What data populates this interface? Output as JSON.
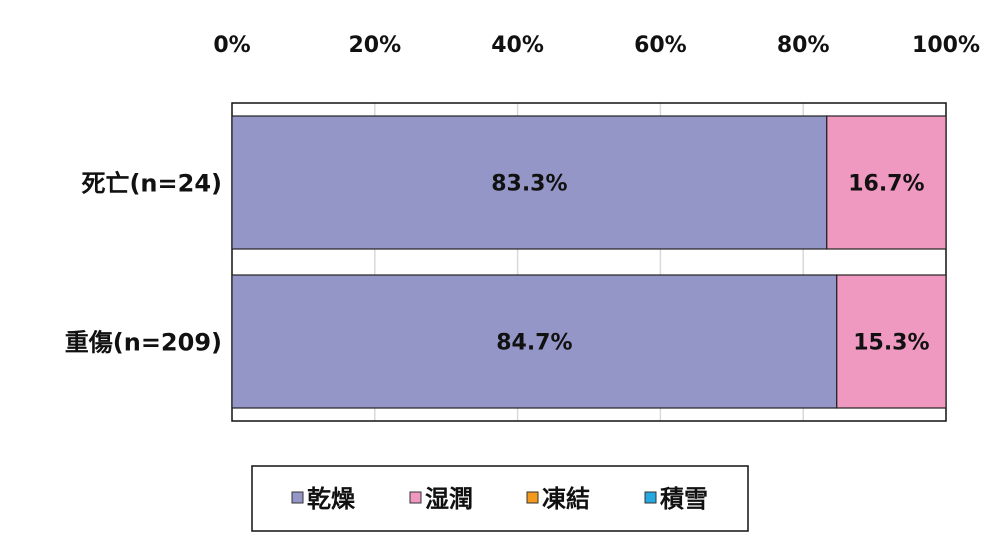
{
  "chart_data": {
    "type": "bar",
    "orientation": "horizontal",
    "stacked": "percent",
    "categories": [
      "死亡(n=24)",
      "重傷(n=209)"
    ],
    "series": [
      {
        "name": "乾燥",
        "color": "#9596C8",
        "values": [
          83.3,
          84.7
        ],
        "labels": [
          "83.3%",
          "84.7%"
        ]
      },
      {
        "name": "湿潤",
        "color": "#EF98C0",
        "values": [
          16.7,
          15.3
        ],
        "labels": [
          "16.7%",
          "15.3%"
        ]
      },
      {
        "name": "凍結",
        "color": "#F39A1E",
        "values": [
          0,
          0
        ],
        "labels": [
          "",
          ""
        ]
      },
      {
        "name": "積雪",
        "color": "#25A9E0",
        "values": [
          0,
          0
        ],
        "labels": [
          "",
          ""
        ]
      }
    ],
    "xlim": [
      0,
      100
    ],
    "xticks": [
      "0%",
      "20%",
      "40%",
      "60%",
      "80%",
      "100%"
    ],
    "xaxis_position": "top",
    "grid": true,
    "legend_position": "bottom"
  }
}
